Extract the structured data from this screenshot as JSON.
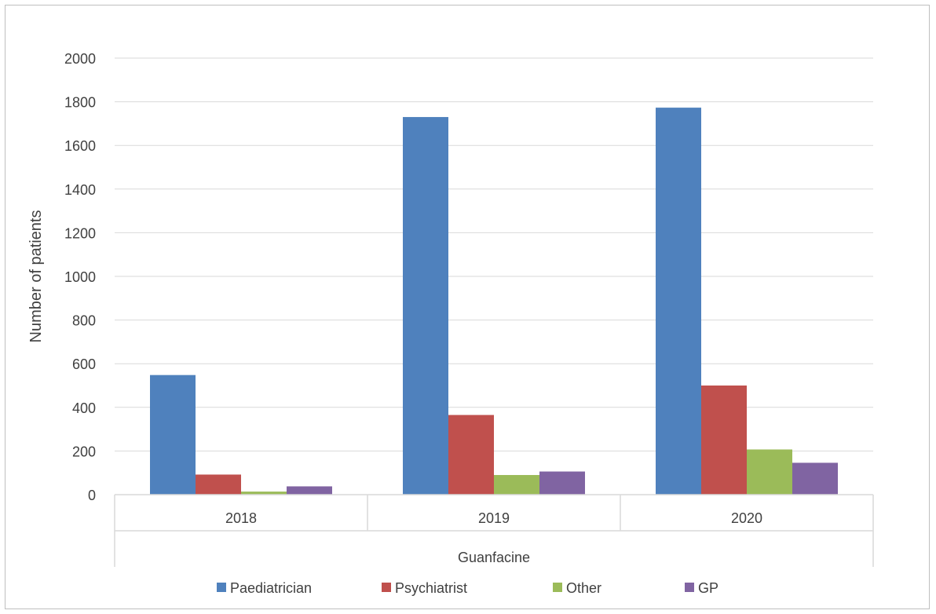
{
  "chart_data": {
    "type": "bar",
    "group_label": "Guanfacine",
    "categories": [
      "2018",
      "2019",
      "2020"
    ],
    "series": [
      {
        "name": "Paediatrician",
        "color": "#4f81bd",
        "values": [
          548,
          1730,
          1773
        ]
      },
      {
        "name": "Psychiatrist",
        "color": "#c0504d",
        "values": [
          92,
          365,
          500
        ]
      },
      {
        "name": "Other",
        "color": "#9bbb59",
        "values": [
          14,
          90,
          207
        ]
      },
      {
        "name": "GP",
        "color": "#8064a2",
        "values": [
          38,
          106,
          146
        ]
      }
    ],
    "ylabel": "Number of patients",
    "ylim": [
      0,
      2000
    ],
    "yticks": [
      "0",
      "200",
      "400",
      "600",
      "800",
      "1000",
      "1200",
      "1400",
      "1600",
      "1800",
      "2000"
    ],
    "grid": true,
    "legend_position": "bottom"
  }
}
